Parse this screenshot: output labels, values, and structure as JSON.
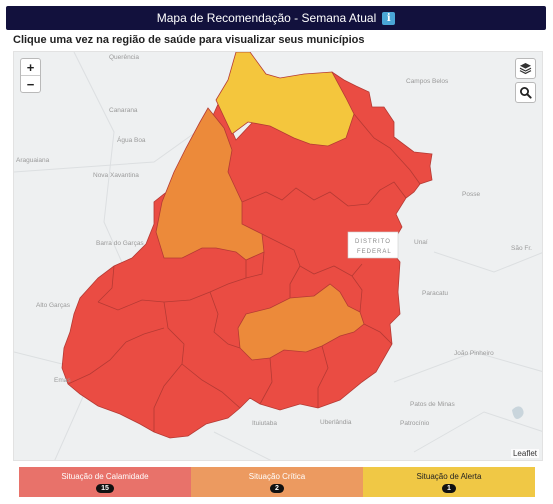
{
  "header": {
    "title": "Mapa de Recomendação - Semana Atual",
    "info_glyph": "i"
  },
  "instruction": "Clique uma vez na região de saúde para visualizar seus municípios",
  "map": {
    "zoom_in": "+",
    "zoom_out": "−",
    "layers_icon": "layers-icon",
    "search_icon": "search-icon",
    "attribution": "Leaflet",
    "region_colors": {
      "calamidade": "#ea4c43",
      "critica": "#ec8a3a",
      "alerta": "#f4c63d"
    },
    "df_label_line1": "DISTRITO",
    "df_label_line2": "FEDERAL",
    "place_labels": [
      "Querência",
      "Canarana",
      "Água Boa",
      "Nova Xavantina",
      "Araguaiana",
      "Barra do Garças",
      "Alto Garças",
      "Emas",
      "Campos Belos",
      "Posse",
      "Unaí",
      "Paracatu",
      "João Pinheiro",
      "Patos de Minas",
      "Uberlândia",
      "Ituiutaba",
      "Patrocínio",
      "São Fr."
    ]
  },
  "legend": [
    {
      "label": "Situação de Calamidade",
      "count": "15",
      "color": "#e8726a"
    },
    {
      "label": "Situação Crítica",
      "count": "2",
      "color": "#ec9a60"
    },
    {
      "label": "Situação de Alerta",
      "count": "1",
      "color": "#f0c845"
    }
  ]
}
